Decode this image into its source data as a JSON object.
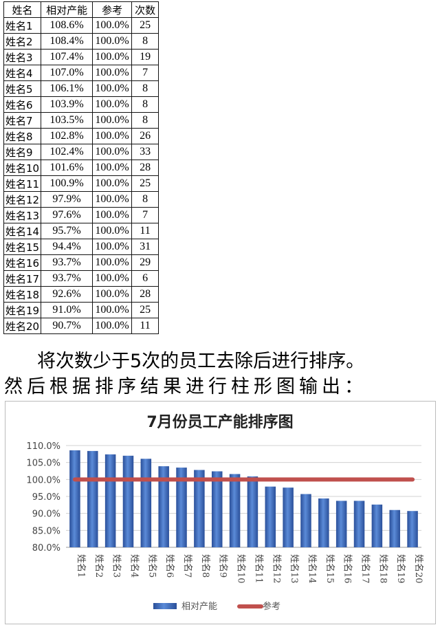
{
  "table": {
    "headers": [
      "姓名",
      "相对产能",
      "参考",
      "次数"
    ],
    "rows": [
      [
        "姓名1",
        "108.6%",
        "100.0%",
        "25"
      ],
      [
        "姓名2",
        "108.4%",
        "100.0%",
        "8"
      ],
      [
        "姓名3",
        "107.4%",
        "100.0%",
        "19"
      ],
      [
        "姓名4",
        "107.0%",
        "100.0%",
        "7"
      ],
      [
        "姓名5",
        "106.1%",
        "100.0%",
        "8"
      ],
      [
        "姓名6",
        "103.9%",
        "100.0%",
        "8"
      ],
      [
        "姓名7",
        "103.5%",
        "100.0%",
        "8"
      ],
      [
        "姓名8",
        "102.8%",
        "100.0%",
        "26"
      ],
      [
        "姓名9",
        "102.4%",
        "100.0%",
        "33"
      ],
      [
        "姓名10",
        "101.6%",
        "100.0%",
        "28"
      ],
      [
        "姓名11",
        "100.9%",
        "100.0%",
        "25"
      ],
      [
        "姓名12",
        "97.9%",
        "100.0%",
        "8"
      ],
      [
        "姓名13",
        "97.6%",
        "100.0%",
        "7"
      ],
      [
        "姓名14",
        "95.7%",
        "100.0%",
        "11"
      ],
      [
        "姓名15",
        "94.4%",
        "100.0%",
        "31"
      ],
      [
        "姓名16",
        "93.7%",
        "100.0%",
        "29"
      ],
      [
        "姓名17",
        "93.7%",
        "100.0%",
        "6"
      ],
      [
        "姓名18",
        "92.6%",
        "100.0%",
        "28"
      ],
      [
        "姓名19",
        "91.0%",
        "100.0%",
        "25"
      ],
      [
        "姓名20",
        "90.7%",
        "100.0%",
        "11"
      ]
    ]
  },
  "text": {
    "line1": "将次数少于5次的员工去除后进行排序。",
    "line2": "然后根据排序结果进行柱形图输出："
  },
  "chart_data": {
    "type": "bar",
    "title": "7月份员工产能排序图",
    "categories": [
      "姓名1",
      "姓名2",
      "姓名3",
      "姓名4",
      "姓名5",
      "姓名6",
      "姓名7",
      "姓名8",
      "姓名9",
      "姓名10",
      "姓名11",
      "姓名12",
      "姓名13",
      "姓名14",
      "姓名15",
      "姓名16",
      "姓名17",
      "姓名18",
      "姓名19",
      "姓名20"
    ],
    "series": [
      {
        "name": "相对产能",
        "type": "bar",
        "color": "#4472c4",
        "values": [
          108.6,
          108.4,
          107.4,
          107.0,
          106.1,
          103.9,
          103.5,
          102.8,
          102.4,
          101.6,
          100.9,
          97.9,
          97.6,
          95.7,
          94.4,
          93.7,
          93.7,
          92.6,
          91.0,
          90.7
        ]
      },
      {
        "name": "参考",
        "type": "line",
        "color": "#c0504d",
        "values": [
          100,
          100,
          100,
          100,
          100,
          100,
          100,
          100,
          100,
          100,
          100,
          100,
          100,
          100,
          100,
          100,
          100,
          100,
          100,
          100
        ]
      }
    ],
    "ylim": [
      80,
      110
    ],
    "yticks": [
      "80.0%",
      "85.0%",
      "90.0%",
      "95.0%",
      "100.0%",
      "105.0%",
      "110.0%"
    ],
    "grid": true,
    "legend": "bottom"
  }
}
